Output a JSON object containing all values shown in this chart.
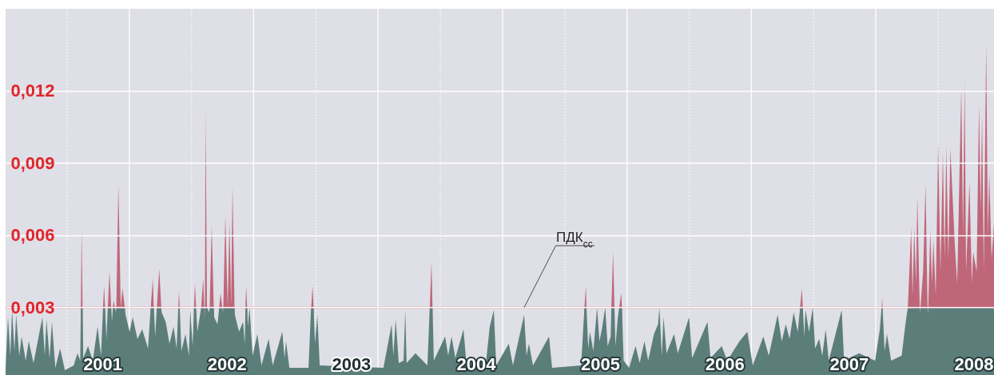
{
  "chart_data": {
    "type": "area",
    "grid": "y",
    "xlim": [
      "2000-07-04",
      "2008-06-13"
    ],
    "ylim": [
      0.0002,
      0.0154
    ],
    "xticks": [
      {
        "value": "2001-04-14",
        "label": "2001"
      },
      {
        "value": "2002-04-14",
        "label": "2002"
      },
      {
        "value": "2003-04-14",
        "label": "2003"
      },
      {
        "value": "2004-04-14",
        "label": "2004"
      },
      {
        "value": "2005-04-14",
        "label": "2005"
      },
      {
        "value": "2006-04-14",
        "label": "2006"
      },
      {
        "value": "2007-04-14",
        "label": "2007"
      },
      {
        "value": "2008-04-14",
        "label": "2008"
      }
    ],
    "yticks": [
      {
        "value": 0.003,
        "label": "0,003"
      },
      {
        "value": 0.006,
        "label": "0,006"
      },
      {
        "value": 0.009,
        "label": "0,009"
      },
      {
        "value": 0.012,
        "label": "0,012"
      }
    ],
    "x": [
      "2000-07-04",
      "2000-07-11",
      "2000-07-18",
      "2000-07-23",
      "2000-07-30",
      "2000-08-04",
      "2000-08-13",
      "2000-08-20",
      "2000-09-01",
      "2000-09-10",
      "2000-09-24",
      "2000-10-20",
      "2000-10-27",
      "2000-11-01",
      "2000-11-10",
      "2000-11-17",
      "2000-11-27",
      "2000-12-11",
      "2000-12-25",
      "2001-01-20",
      "2001-01-31",
      "2001-02-08",
      "2001-02-10",
      "2001-02-12",
      "2001-02-15",
      "2001-02-17",
      "2001-03-03",
      "2001-03-17",
      "2001-03-31",
      "2001-04-10",
      "2001-04-16",
      "2001-04-19",
      "2001-04-22",
      "2001-04-26",
      "2001-04-30",
      "2001-05-05",
      "2001-05-10",
      "2001-05-12",
      "2001-05-15",
      "2001-05-17",
      "2001-05-21",
      "2001-05-24",
      "2001-05-25",
      "2001-05-31",
      "2001-06-07",
      "2001-06-12",
      "2001-06-19",
      "2001-06-21",
      "2001-07-03",
      "2001-07-12",
      "2001-07-26",
      "2001-08-09",
      "2001-08-26",
      "2001-09-03",
      "2001-09-09",
      "2001-09-12",
      "2001-09-16",
      "2001-09-21",
      "2001-09-28",
      "2001-10-04",
      "2001-10-05",
      "2001-10-17",
      "2001-10-28",
      "2001-11-09",
      "2001-11-18",
      "2001-11-23",
      "2001-11-25",
      "2001-11-27",
      "2001-12-02",
      "2001-12-14",
      "2001-12-24",
      "2001-12-28",
      "2002-01-04",
      "2002-01-08",
      "2002-01-11",
      "2002-01-14",
      "2002-01-18",
      "2002-01-28",
      "2002-01-29",
      "2002-02-04",
      "2002-02-07",
      "2002-02-08",
      "2002-02-09",
      "2002-02-11",
      "2002-02-15",
      "2002-02-22",
      "2002-02-23",
      "2002-03-01",
      "2002-03-07",
      "2002-03-08",
      "2002-03-18",
      "2002-03-23",
      "2002-03-27",
      "2002-04-01",
      "2002-04-03",
      "2002-04-04",
      "2002-04-10",
      "2002-04-17",
      "2002-04-22",
      "2002-04-27",
      "2002-05-01",
      "2002-05-07",
      "2002-05-08",
      "2002-05-20",
      "2002-06-01",
      "2002-06-06",
      "2002-06-08",
      "2002-06-10",
      "2002-06-13",
      "2002-06-15",
      "2002-06-20",
      "2002-06-29",
      "2002-07-13",
      "2002-07-25",
      "2002-08-15",
      "2002-08-27",
      "2002-09-24",
      "2002-10-01",
      "2002-10-05",
      "2002-10-15",
      "2002-12-10",
      "2002-12-17",
      "2002-12-18",
      "2002-12-22",
      "2002-12-25",
      "2002-12-29",
      "2003-01-05",
      "2003-01-12",
      "2003-07-18",
      "2003-08-11",
      "2003-08-16",
      "2003-08-23",
      "2003-09-01",
      "2003-09-15",
      "2003-09-20",
      "2003-09-24",
      "2003-10-20",
      "2003-11-24",
      "2003-12-01",
      "2003-12-06",
      "2003-12-09",
      "2003-12-13",
      "2004-01-15",
      "2004-01-24",
      "2004-02-03",
      "2004-02-14",
      "2004-03-09",
      "2004-03-18",
      "2004-05-13",
      "2004-05-25",
      "2004-06-06",
      "2004-06-13",
      "2004-07-20",
      "2004-08-01",
      "2004-09-03",
      "2004-09-10",
      "2004-09-17",
      "2004-09-29",
      "2004-11-15",
      "2004-11-24",
      "2005-02-17",
      "2005-02-27",
      "2005-03-03",
      "2005-03-05",
      "2005-03-10",
      "2005-03-15",
      "2005-03-25",
      "2005-04-05",
      "2005-04-12",
      "2005-04-19",
      "2005-04-29",
      "2005-05-06",
      "2005-05-15",
      "2005-05-17",
      "2005-05-22",
      "2005-05-26",
      "2005-05-29",
      "2005-06-05",
      "2005-06-09",
      "2005-06-15",
      "2005-06-17",
      "2005-06-22",
      "2005-07-08",
      "2005-07-27",
      "2005-08-08",
      "2005-08-22",
      "2005-09-02",
      "2005-09-19",
      "2005-10-01",
      "2005-10-05",
      "2005-10-12",
      "2005-10-17",
      "2005-10-26",
      "2005-11-17",
      "2005-11-28",
      "2005-12-31",
      "2006-01-09",
      "2006-02-23",
      "2006-03-04",
      "2006-04-06",
      "2006-04-22",
      "2006-05-28",
      "2006-06-20",
      "2006-07-06",
      "2006-08-06",
      "2006-08-22",
      "2006-09-17",
      "2006-09-29",
      "2006-10-11",
      "2006-10-22",
      "2006-11-03",
      "2006-11-15",
      "2006-11-22",
      "2006-11-27",
      "2006-11-30",
      "2006-12-04",
      "2006-12-08",
      "2006-12-18",
      "2006-12-29",
      "2007-01-05",
      "2007-01-17",
      "2007-01-26",
      "2007-02-05",
      "2007-02-14",
      "2007-03-24",
      "2007-03-31",
      "2007-05-14",
      "2007-06-30",
      "2007-07-14",
      "2007-07-19",
      "2007-07-21",
      "2007-07-22",
      "2007-07-28",
      "2007-08-04",
      "2007-08-16",
      "2007-09-16",
      "2007-09-27",
      "2007-10-04",
      "2007-10-14",
      "2007-10-18",
      "2007-10-23",
      "2007-10-28",
      "2007-11-01",
      "2007-11-08",
      "2007-11-09",
      "2007-11-10",
      "2007-11-18",
      "2007-11-25",
      "2007-12-01",
      "2007-12-02",
      "2007-12-03",
      "2007-12-09",
      "2007-12-14",
      "2007-12-18",
      "2007-12-25",
      "2008-01-01",
      "2008-01-08",
      "2008-01-15",
      "2008-01-20",
      "2008-01-25",
      "2008-01-31",
      "2008-02-06",
      "2008-02-19",
      "2008-02-26",
      "2008-03-02",
      "2008-03-09",
      "2008-03-14",
      "2008-03-19",
      "2008-03-23",
      "2008-04-02",
      "2008-04-09",
      "2008-04-13",
      "2008-04-23",
      "2008-04-30",
      "2008-05-05",
      "2008-05-09",
      "2008-05-14",
      "2008-05-21",
      "2008-05-26",
      "2008-05-30",
      "2008-06-06",
      "2008-06-13"
    ],
    "series": [
      {
        "color": "#bf6679",
        "values": [
          null,
          null,
          null,
          null,
          null,
          null,
          null,
          null,
          null,
          null,
          null,
          null,
          null,
          null,
          null,
          null,
          null,
          null,
          null,
          null,
          null,
          null,
          0.003,
          0.0063,
          0.003,
          null,
          null,
          null,
          null,
          null,
          0.003,
          0.0039,
          0.003,
          null,
          0.003,
          0.0045,
          0.003,
          null,
          0.003,
          0.0033,
          0.003,
          null,
          0.003,
          0.0081,
          0.003,
          0.0038,
          0.003,
          null,
          null,
          null,
          null,
          null,
          null,
          0.003,
          0.0042,
          0.003,
          null,
          0.003,
          0.0046,
          0.003,
          null,
          null,
          null,
          null,
          null,
          0.003,
          0.0037,
          0.003,
          null,
          null,
          null,
          null,
          null,
          0.003,
          0.004,
          0.003,
          null,
          null,
          0.003,
          0.0042,
          0.003,
          null,
          0.003,
          0.0112,
          0.003,
          null,
          0.003,
          0.0064,
          0.003,
          null,
          null,
          0.003,
          0.0036,
          0.003,
          null,
          0.003,
          0.0068,
          0.003,
          0.0066,
          0.0031,
          0.008,
          0.003,
          null,
          null,
          null,
          null,
          0.003,
          0.0039,
          0.003,
          null,
          null,
          null,
          null,
          null,
          null,
          null,
          null,
          null,
          null,
          null,
          null,
          null,
          0.003,
          0.0039,
          0.003,
          null,
          null,
          null,
          null,
          null,
          null,
          null,
          null,
          null,
          null,
          null,
          null,
          null,
          0.003,
          0.0049,
          0.003,
          null,
          null,
          null,
          null,
          null,
          null,
          null,
          null,
          null,
          null,
          null,
          null,
          null,
          null,
          null,
          null,
          null,
          null,
          null,
          null,
          0.003,
          0.0039,
          0.003,
          null,
          null,
          null,
          null,
          null,
          null,
          null,
          null,
          null,
          0.003,
          0.0053,
          0.003,
          null,
          null,
          0.003,
          0.0036,
          0.003,
          null,
          null,
          null,
          null,
          null,
          null,
          null,
          null,
          null,
          null,
          null,
          null,
          null,
          null,
          null,
          null,
          null,
          null,
          null,
          null,
          null,
          null,
          null,
          null,
          null,
          null,
          null,
          null,
          null,
          null,
          null,
          0.003,
          0.0038,
          0.003,
          null,
          null,
          null,
          null,
          null,
          null,
          null,
          null,
          null,
          null,
          null,
          null,
          null,
          null,
          0.003,
          0.0034,
          0.003,
          null,
          null,
          null,
          null,
          null,
          0.003,
          0.0063,
          0.0035,
          0.0063,
          0.004,
          0.0076,
          0.003,
          null,
          0.003,
          0.0045,
          0.0081,
          0.003,
          null,
          0.003,
          0.0062,
          0.004,
          0.0058,
          0.0035,
          0.0098,
          0.0045,
          0.0094,
          0.005,
          0.0097,
          0.005,
          0.0096,
          0.0056,
          0.004,
          0.0074,
          0.0121,
          0.006,
          0.0124,
          0.0045,
          0.0082,
          0.004,
          0.0053,
          0.0045,
          0.0114,
          0.007,
          0.011,
          0.0045,
          0.0139,
          0.006,
          0.0086,
          0.005,
          0.0065
        ]
      },
      {
        "color": "#5c7e7b",
        "values": [
          0.0005,
          0.0026,
          0.001,
          0.0029,
          0.0012,
          0.0027,
          0.001,
          0.0018,
          0.0008,
          0.0016,
          0.0007,
          0.0026,
          0.001,
          0.0025,
          0.0009,
          0.0024,
          0.0005,
          0.0013,
          0.0004,
          0.0006,
          0.0011,
          0.0008,
          0.003,
          0.003,
          0.003,
          0.0009,
          0.0014,
          0.0008,
          0.0022,
          0.001,
          0.003,
          0.003,
          0.003,
          0.0017,
          0.003,
          0.003,
          0.003,
          0.0024,
          0.003,
          0.003,
          0.003,
          0.0028,
          0.003,
          0.003,
          0.003,
          0.003,
          0.003,
          0.0027,
          0.002,
          0.0026,
          0.0017,
          0.0021,
          0.0013,
          0.003,
          0.003,
          0.003,
          0.0018,
          0.003,
          0.003,
          0.003,
          0.0028,
          0.0024,
          0.0015,
          0.0022,
          0.0013,
          0.003,
          0.003,
          0.003,
          0.0012,
          0.0019,
          0.001,
          0.0029,
          0.0014,
          0.003,
          0.003,
          0.003,
          0.002,
          0.0029,
          0.003,
          0.003,
          0.003,
          0.0024,
          0.003,
          0.003,
          0.003,
          0.0028,
          0.003,
          0.003,
          0.003,
          0.0026,
          0.0023,
          0.003,
          0.003,
          0.003,
          0.0028,
          0.003,
          0.003,
          0.003,
          0.003,
          0.003,
          0.003,
          0.003,
          0.0027,
          0.002,
          0.0024,
          0.0015,
          0.003,
          0.003,
          0.003,
          0.0022,
          0.003,
          0.001,
          0.0019,
          0.0006,
          0.0017,
          0.0006,
          0.002,
          0.0009,
          0.0016,
          0.0005,
          0.0005,
          0.0028,
          0.003,
          0.003,
          0.003,
          0.0015,
          0.0027,
          0.0006,
          0.0005,
          0.0023,
          0.001,
          0.0025,
          0.0007,
          0.0008,
          0.0029,
          0.0007,
          0.0011,
          0.0006,
          0.003,
          0.003,
          0.003,
          0.0008,
          0.0018,
          0.001,
          0.0018,
          0.0009,
          0.0021,
          0.0006,
          0.0006,
          0.0022,
          0.0029,
          0.0006,
          0.0015,
          0.0006,
          0.0027,
          0.001,
          0.0015,
          0.0006,
          0.0018,
          0.0005,
          0.0006,
          0.003,
          0.003,
          0.003,
          0.0013,
          0.002,
          0.0012,
          0.003,
          0.0016,
          0.0021,
          0.003,
          0.0014,
          0.0018,
          0.003,
          0.003,
          0.003,
          0.0014,
          0.0026,
          0.003,
          0.003,
          0.003,
          0.0008,
          0.0005,
          0.0014,
          0.0007,
          0.0016,
          0.0008,
          0.0019,
          0.0023,
          0.003,
          0.001,
          0.0026,
          0.0011,
          0.0019,
          0.0011,
          0.0026,
          0.0009,
          0.0024,
          0.0009,
          0.0014,
          0.0008,
          0.0016,
          0.002,
          0.0006,
          0.0018,
          0.001,
          0.0027,
          0.0016,
          0.0023,
          0.0017,
          0.0028,
          0.002,
          0.003,
          0.003,
          0.003,
          0.0018,
          0.0029,
          0.002,
          0.003,
          0.0013,
          0.0017,
          0.001,
          0.0021,
          0.0008,
          0.0029,
          0.0008,
          0.0011,
          0.0008,
          0.0021,
          0.003,
          0.003,
          0.003,
          0.0012,
          0.0019,
          0.0008,
          0.001,
          0.0023,
          0.003,
          0.003,
          0.003,
          0.003,
          0.003,
          0.003,
          0.003,
          0.0028,
          0.003,
          0.003,
          0.003,
          0.003,
          0.0027,
          0.003,
          0.003,
          0.003,
          0.003,
          0.003,
          0.003,
          0.003,
          0.003,
          0.003,
          0.003,
          0.003,
          0.003,
          0.003,
          0.003,
          0.003,
          0.003,
          0.003,
          0.003,
          0.003,
          0.003,
          0.003,
          0.003,
          0.003,
          0.003,
          0.003,
          0.003,
          0.003,
          0.003,
          0.003,
          0.003,
          0.003,
          0.003
        ]
      }
    ],
    "ref_lines": [
      {
        "axis": "x",
        "value": "2001-01-01",
        "color": "#ffffff",
        "line_style": "dotted"
      },
      {
        "axis": "x",
        "value": "2002-01-01",
        "color": "#ffffff",
        "line_style": "dotted"
      },
      {
        "axis": "x",
        "value": "2003-01-01",
        "color": "#ffffff",
        "line_style": "dotted"
      },
      {
        "axis": "x",
        "value": "2004-01-01",
        "color": "#ffffff",
        "line_style": "dotted"
      },
      {
        "axis": "x",
        "value": "2005-01-01",
        "color": "#ffffff",
        "line_style": "dotted"
      },
      {
        "axis": "x",
        "value": "2006-01-01",
        "color": "#ffffff",
        "line_style": "dotted"
      },
      {
        "axis": "x",
        "value": "2007-01-01",
        "color": "#ffffff",
        "line_style": "dotted"
      },
      {
        "axis": "x",
        "value": "2008-01-01",
        "color": "#ffffff",
        "line_style": "dotted"
      },
      {
        "axis": "x",
        "value": "2001-07-02",
        "color": "#ffffff"
      },
      {
        "axis": "x",
        "value": "2002-07-02",
        "color": "#ffffff"
      },
      {
        "axis": "x",
        "value": "2003-07-02",
        "color": "#ffffff"
      },
      {
        "axis": "x",
        "value": "2004-07-02",
        "color": "#ffffff"
      },
      {
        "axis": "x",
        "value": "2005-07-02",
        "color": "#ffffff"
      },
      {
        "axis": "x",
        "value": "2006-07-02",
        "color": "#ffffff"
      },
      {
        "axis": "x",
        "value": "2007-07-02",
        "color": "#ffffff"
      },
      {
        "axis": "y",
        "value": 0.003,
        "color": "#d8454b"
      }
    ],
    "annotations": [
      {
        "text": "ПДК$_{сс}$",
        "x": "2004-09-03",
        "y": 0.003
      }
    ]
  }
}
